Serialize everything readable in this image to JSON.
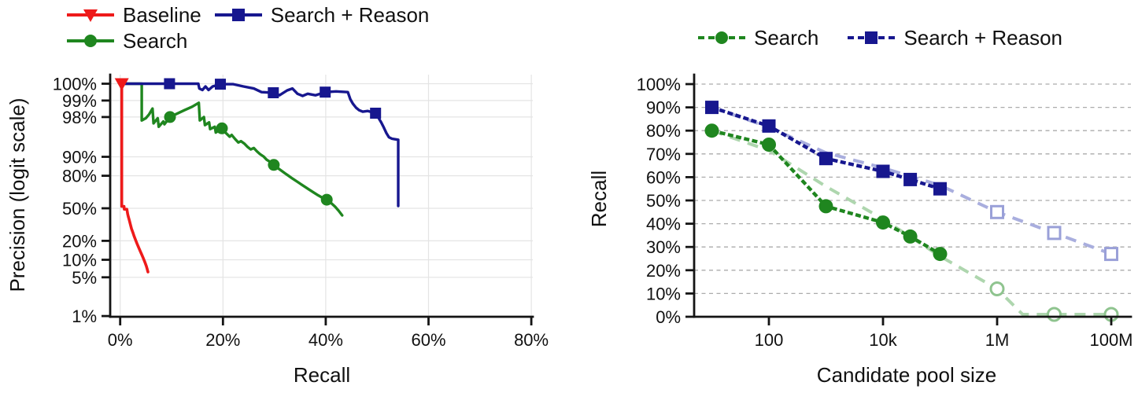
{
  "page": {
    "background": "#ffffff"
  },
  "colors": {
    "baseline_red": "#ee1a1a",
    "search_green": "#1f861f",
    "reason_navy": "#17178f",
    "trend_green_pale": "#aed6ae",
    "trend_blue_pale": "#a9aede",
    "open_green": "#8fc48f",
    "open_blue": "#9aa0d8",
    "grid_left": "#e4e4e4",
    "grid_right": "#ababab",
    "axis": "#141414",
    "text": "#111111"
  },
  "chart_data": [
    {
      "type": "line",
      "title": "",
      "xlabel": "Recall",
      "ylabel": "Precision (logit scale)",
      "x_scale": "linear-percent",
      "y_scale": "logit-percent",
      "xlim": [
        0,
        80
      ],
      "grid": "solid-both",
      "legend_position": "top-left, two rows, no frame",
      "x_ticks": [
        {
          "v": 0,
          "label": "0%"
        },
        {
          "v": 20,
          "label": "20%"
        },
        {
          "v": 40,
          "label": "40%"
        },
        {
          "v": 60,
          "label": "60%"
        },
        {
          "v": 80,
          "label": "80%"
        }
      ],
      "y_ticks": [
        {
          "v": 100,
          "label": "100%"
        },
        {
          "v": 99,
          "label": "99%"
        },
        {
          "v": 98,
          "label": "98%"
        },
        {
          "v": 90,
          "label": "90%"
        },
        {
          "v": 80,
          "label": "80%"
        },
        {
          "v": 50,
          "label": "50%"
        },
        {
          "v": 20,
          "label": "20%"
        },
        {
          "v": 10,
          "label": "10%"
        },
        {
          "v": 5,
          "label": "5%"
        },
        {
          "v": 1,
          "label": "1%"
        }
      ],
      "legend": [
        {
          "label": "Baseline",
          "color": "#ee1a1a",
          "marker": "triangle-down",
          "line": "solid"
        },
        {
          "label": "Search",
          "color": "#1f861f",
          "marker": "circle",
          "line": "solid"
        },
        {
          "label": "Search + Reason",
          "color": "#17178f",
          "marker": "square",
          "line": "solid"
        }
      ],
      "series": [
        {
          "name": "Baseline",
          "color": "#ee1a1a",
          "marker": "triangle-down",
          "marker_size": 9,
          "line_width": 3.6,
          "marker_points": [
            [
              0.3,
              100
            ]
          ],
          "points": [
            [
              0.3,
              100
            ],
            [
              0.3,
              52
            ],
            [
              0.75,
              52
            ],
            [
              0.8,
              49
            ],
            [
              1.3,
              49
            ],
            [
              1.45,
              44
            ],
            [
              1.6,
              41
            ],
            [
              1.8,
              37
            ],
            [
              2.0,
              33
            ],
            [
              2.2,
              29.5
            ],
            [
              2.5,
              26
            ],
            [
              2.7,
              23.5
            ],
            [
              3.0,
              20.5
            ],
            [
              3.3,
              18
            ],
            [
              3.6,
              15.8
            ],
            [
              3.9,
              13.8
            ],
            [
              4.2,
              12.2
            ],
            [
              4.5,
              10.6
            ],
            [
              4.8,
              9.2
            ],
            [
              5.1,
              7.8
            ],
            [
              5.25,
              7.0
            ],
            [
              5.4,
              6.2
            ]
          ]
        },
        {
          "name": "Search",
          "color": "#1f861f",
          "marker": "circle",
          "marker_size": 7.5,
          "line_width": 3.4,
          "marker_points": [
            [
              9.7,
              98.0
            ],
            [
              19.8,
              96.8
            ],
            [
              29.9,
              86.4
            ],
            [
              40.2,
              59.0
            ]
          ],
          "points": [
            [
              0.3,
              100
            ],
            [
              4.2,
              100
            ],
            [
              4.2,
              97.7
            ],
            [
              5.0,
              97.9
            ],
            [
              5.6,
              98.2
            ],
            [
              6.3,
              98.6
            ],
            [
              6.5,
              97.4
            ],
            [
              7.3,
              97.9
            ],
            [
              7.5,
              97.0
            ],
            [
              8.4,
              97.6
            ],
            [
              8.6,
              97.3
            ],
            [
              9.7,
              98.0
            ],
            [
              11.0,
              98.25
            ],
            [
              12.5,
              98.5
            ],
            [
              14.0,
              98.7
            ],
            [
              15.3,
              98.9
            ],
            [
              15.5,
              97.7
            ],
            [
              16.3,
              98.0
            ],
            [
              16.5,
              97.2
            ],
            [
              17.3,
              97.5
            ],
            [
              17.5,
              96.7
            ],
            [
              18.4,
              97.0
            ],
            [
              18.6,
              96.2
            ],
            [
              19.8,
              96.8
            ],
            [
              20.6,
              96.1
            ],
            [
              21.3,
              95.5
            ],
            [
              21.7,
              95.8
            ],
            [
              22.4,
              95.0
            ],
            [
              23.0,
              94.3
            ],
            [
              23.5,
              94.6
            ],
            [
              24.2,
              94.0
            ],
            [
              24.8,
              93.2
            ],
            [
              25.4,
              92.5
            ],
            [
              26.0,
              92.9
            ],
            [
              26.6,
              91.9
            ],
            [
              27.2,
              91.0
            ],
            [
              27.9,
              90.1
            ],
            [
              28.5,
              88.8
            ],
            [
              29.2,
              87.8
            ],
            [
              29.9,
              86.4
            ],
            [
              30.7,
              84.7
            ],
            [
              31.4,
              83.2
            ],
            [
              32.1,
              81.6
            ],
            [
              32.8,
              79.9
            ],
            [
              33.5,
              78.1
            ],
            [
              34.3,
              76.1
            ],
            [
              35.1,
              73.9
            ],
            [
              35.9,
              71.6
            ],
            [
              36.7,
              69.2
            ],
            [
              37.6,
              66.4
            ],
            [
              38.5,
              63.6
            ],
            [
              39.3,
              61.2
            ],
            [
              40.2,
              59.0
            ],
            [
              41.0,
              55.8
            ],
            [
              41.8,
              51.8
            ],
            [
              42.5,
              47.5
            ],
            [
              43.2,
              42.5
            ]
          ]
        },
        {
          "name": "Search + Reason",
          "color": "#17178f",
          "marker": "square",
          "marker_size": 7,
          "line_width": 3.4,
          "marker_points": [
            [
              9.6,
              100
            ],
            [
              19.5,
              99.5
            ],
            [
              29.8,
              99.28
            ],
            [
              39.9,
              99.3
            ],
            [
              49.7,
              98.3
            ]
          ],
          "points": [
            [
              0.3,
              100
            ],
            [
              15.2,
              100
            ],
            [
              15.4,
              99.4
            ],
            [
              16.0,
              99.36
            ],
            [
              16.6,
              99.45
            ],
            [
              17.2,
              99.36
            ],
            [
              18.0,
              99.45
            ],
            [
              19.5,
              99.5
            ],
            [
              22.0,
              99.5
            ],
            [
              24.0,
              99.45
            ],
            [
              26.0,
              99.4
            ],
            [
              27.5,
              99.3
            ],
            [
              29.8,
              99.28
            ],
            [
              31.0,
              99.2
            ],
            [
              32.5,
              99.35
            ],
            [
              33.5,
              99.4
            ],
            [
              34.5,
              99.25
            ],
            [
              35.5,
              99.18
            ],
            [
              36.5,
              99.25
            ],
            [
              38.0,
              99.2
            ],
            [
              39.9,
              99.3
            ],
            [
              42.0,
              99.32
            ],
            [
              44.3,
              99.3
            ],
            [
              44.8,
              99.05
            ],
            [
              45.3,
              98.85
            ],
            [
              45.9,
              98.65
            ],
            [
              46.5,
              98.5
            ],
            [
              47.2,
              98.4
            ],
            [
              48.2,
              98.45
            ],
            [
              49.7,
              98.3
            ],
            [
              50.3,
              97.9
            ],
            [
              50.8,
              97.5
            ],
            [
              51.3,
              96.9
            ],
            [
              51.8,
              96.1
            ],
            [
              52.3,
              95.4
            ],
            [
              52.9,
              95.1
            ],
            [
              53.5,
              95.0
            ],
            [
              54.1,
              94.9
            ],
            [
              54.1,
              52.5
            ]
          ]
        }
      ]
    },
    {
      "type": "line",
      "title": "",
      "xlabel": "Candidate pool size",
      "ylabel": "Recall",
      "x_scale": "log",
      "y_scale": "linear-percent",
      "ylim": [
        0,
        100
      ],
      "grid": "dashed-horizontal",
      "legend_position": "top-center, one row, no frame",
      "x_ticks": [
        {
          "v": 100,
          "label": "100"
        },
        {
          "v": 10000,
          "label": "10k"
        },
        {
          "v": 1000000,
          "label": "1M"
        },
        {
          "v": 100000000,
          "label": "100M"
        }
      ],
      "y_ticks": [
        {
          "v": 0,
          "label": "0%"
        },
        {
          "v": 10,
          "label": "10%"
        },
        {
          "v": 20,
          "label": "20%"
        },
        {
          "v": 30,
          "label": "30%"
        },
        {
          "v": 40,
          "label": "40%"
        },
        {
          "v": 50,
          "label": "50%"
        },
        {
          "v": 60,
          "label": "60%"
        },
        {
          "v": 70,
          "label": "70%"
        },
        {
          "v": 80,
          "label": "80%"
        },
        {
          "v": 90,
          "label": "90%"
        },
        {
          "v": 100,
          "label": "100%"
        }
      ],
      "legend": [
        {
          "label": "Search",
          "color": "#1f861f",
          "marker": "circle",
          "line": "dashed"
        },
        {
          "label": "Search + Reason",
          "color": "#17178f",
          "marker": "square",
          "line": "dashed"
        }
      ],
      "series": [
        {
          "name": "Search extrapolation trend",
          "role": "trend",
          "color": "#aed6ae",
          "points": [
            [
              10,
              80
            ],
            [
              100,
              71.5
            ],
            [
              1000,
              56
            ],
            [
              10000,
              42
            ],
            [
              100000,
              26
            ],
            [
              1000000,
              12
            ],
            [
              2800000,
              1
            ],
            [
              100000000,
              1
            ]
          ]
        },
        {
          "name": "Search + Reason extrapolation trend",
          "role": "trend",
          "color": "#a9aede",
          "points": [
            [
              10,
              90
            ],
            [
              100,
              81.5
            ],
            [
              1000,
              70.5
            ],
            [
              10000,
              64
            ],
            [
              100000,
              56.5
            ],
            [
              1000000,
              45
            ],
            [
              10000000,
              36
            ],
            [
              100000000,
              27
            ]
          ]
        },
        {
          "name": "Search",
          "role": "measured",
          "color": "#1f861f",
          "marker": "circle",
          "marker_size": 9,
          "points": [
            [
              10,
              80
            ],
            [
              100,
              74
            ],
            [
              1000,
              47.5
            ],
            [
              10000,
              40.5
            ],
            [
              30000,
              34.5
            ],
            [
              100000,
              27
            ]
          ]
        },
        {
          "name": "Search + Reason",
          "role": "measured",
          "color": "#17178f",
          "marker": "square",
          "marker_size": 8.5,
          "points": [
            [
              10,
              90
            ],
            [
              100,
              82
            ],
            [
              1000,
              68
            ],
            [
              10000,
              62.5
            ],
            [
              30000,
              59
            ],
            [
              100000,
              55
            ]
          ]
        },
        {
          "name": "Search projected",
          "role": "projected",
          "color": "#8fc48f",
          "marker": "circle-open",
          "marker_size": 8,
          "points": [
            [
              1000000,
              12
            ],
            [
              10000000,
              1
            ],
            [
              100000000,
              1
            ]
          ]
        },
        {
          "name": "Search + Reason projected",
          "role": "projected",
          "color": "#9aa0d8",
          "marker": "square-open",
          "marker_size": 7.5,
          "points": [
            [
              1000000,
              45
            ],
            [
              10000000,
              36
            ],
            [
              100000000,
              27
            ]
          ]
        }
      ]
    }
  ]
}
